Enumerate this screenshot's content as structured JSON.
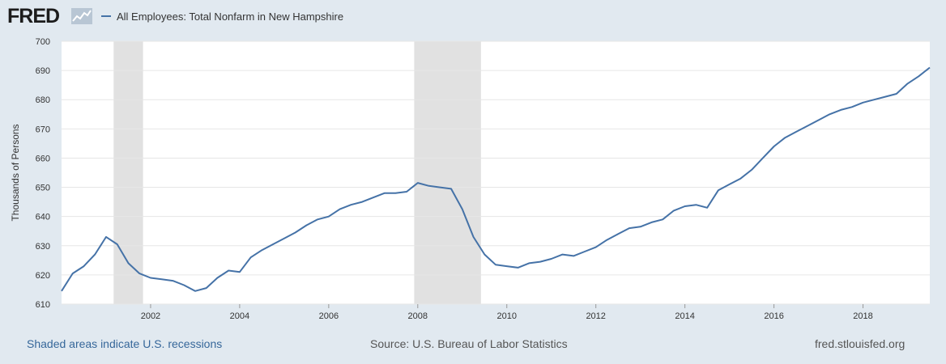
{
  "header": {
    "logo_text": "FRED",
    "legend_label": "All Employees: Total Nonfarm in New Hampshire"
  },
  "colors": {
    "background": "#e1e9f0",
    "plot_background": "#ffffff",
    "series": "#4572a7",
    "recession": "#e1e1e1",
    "link": "#36679a"
  },
  "footer": {
    "recession_note": "Shaded areas indicate U.S. recessions",
    "source": "Source: U.S. Bureau of Labor Statistics",
    "site": "fred.stlouisfed.org"
  },
  "chart_data": {
    "type": "line",
    "ylabel": "Thousands of Persons",
    "ylim": [
      610,
      700
    ],
    "yticks": [
      "610",
      "620",
      "630",
      "640",
      "650",
      "660",
      "670",
      "680",
      "690",
      "700"
    ],
    "xticks": [
      "2002",
      "2004",
      "2006",
      "2008",
      "2010",
      "2012",
      "2014",
      "2016",
      "2018"
    ],
    "xlim": [
      2000.0,
      2019.5
    ],
    "grid": "horizontal",
    "recessions": [
      {
        "start": 2001.17,
        "end": 2001.83
      },
      {
        "start": 2007.92,
        "end": 2009.42
      }
    ],
    "series": [
      {
        "name": "All Employees: Total Nonfarm in New Hampshire",
        "x": [
          2000.0,
          2000.25,
          2000.5,
          2000.75,
          2001.0,
          2001.25,
          2001.5,
          2001.75,
          2002.0,
          2002.25,
          2002.5,
          2002.75,
          2003.0,
          2003.25,
          2003.5,
          2003.75,
          2004.0,
          2004.25,
          2004.5,
          2004.75,
          2005.0,
          2005.25,
          2005.5,
          2005.75,
          2006.0,
          2006.25,
          2006.5,
          2006.75,
          2007.0,
          2007.25,
          2007.5,
          2007.75,
          2008.0,
          2008.25,
          2008.5,
          2008.75,
          2009.0,
          2009.25,
          2009.5,
          2009.75,
          2010.0,
          2010.25,
          2010.5,
          2010.75,
          2011.0,
          2011.25,
          2011.5,
          2011.75,
          2012.0,
          2012.25,
          2012.5,
          2012.75,
          2013.0,
          2013.25,
          2013.5,
          2013.75,
          2014.0,
          2014.25,
          2014.5,
          2014.75,
          2015.0,
          2015.25,
          2015.5,
          2015.75,
          2016.0,
          2016.25,
          2016.5,
          2016.75,
          2017.0,
          2017.25,
          2017.5,
          2017.75,
          2018.0,
          2018.25,
          2018.5,
          2018.75,
          2019.0,
          2019.25,
          2019.5
        ],
        "values": [
          614.5,
          620.5,
          623.0,
          627.0,
          633.0,
          630.5,
          624.0,
          620.5,
          619.0,
          618.5,
          618.0,
          616.5,
          614.5,
          615.5,
          619.0,
          621.5,
          621.0,
          626.0,
          628.5,
          630.5,
          632.5,
          634.5,
          637.0,
          639.0,
          640.0,
          642.5,
          644.0,
          645.0,
          646.5,
          648.0,
          648.0,
          648.5,
          651.5,
          650.5,
          650.0,
          649.5,
          642.5,
          633.0,
          627.0,
          623.5,
          623.0,
          622.5,
          624.0,
          624.5,
          625.5,
          627.0,
          626.5,
          628.0,
          629.5,
          632.0,
          634.0,
          636.0,
          636.5,
          638.0,
          639.0,
          642.0,
          643.5,
          644.0,
          643.0,
          649.0,
          651.0,
          653.0,
          656.0,
          660.0,
          664.0,
          667.0,
          669.0,
          671.0,
          673.0,
          675.0,
          676.5,
          677.5,
          679.0,
          680.0,
          681.0,
          682.0,
          685.5,
          688.0,
          691.0
        ]
      }
    ]
  }
}
